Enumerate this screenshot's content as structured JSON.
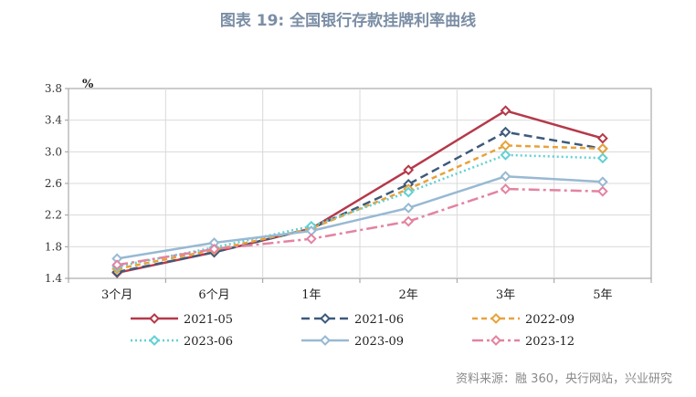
{
  "title": "图表 19: 全国银行存款挂牌利率曲线",
  "source": "资料来源：融 360，央行网站，兴业研究",
  "chart_data": {
    "type": "line",
    "title": "图表 19: 全国银行存款挂牌利率曲线",
    "ylabel": "%",
    "xlabel": "",
    "ylim": [
      1.4,
      3.8
    ],
    "yticks": [
      1.4,
      1.8,
      2.2,
      2.6,
      3.0,
      3.4,
      3.8
    ],
    "ytick_labels": [
      "1.4",
      "1.8",
      "2.2",
      "2.6",
      "3.0",
      "3.4",
      "3.8"
    ],
    "categories": [
      "3个月",
      "6个月",
      "1年",
      "2年",
      "3年",
      "5年"
    ],
    "grid": true,
    "legend_position": "bottom",
    "series": [
      {
        "name": "2021-05",
        "values": [
          1.47,
          1.73,
          2.03,
          2.77,
          3.52,
          3.17
        ],
        "color": "#b5394a",
        "dash": "solid",
        "width": 2.5
      },
      {
        "name": "2021-06",
        "values": [
          1.48,
          1.73,
          2.03,
          2.59,
          3.25,
          3.04
        ],
        "color": "#3e5a7c",
        "dash": "9,5",
        "width": 2.5
      },
      {
        "name": "2022-09",
        "values": [
          1.52,
          1.76,
          2.03,
          2.53,
          3.08,
          3.04
        ],
        "color": "#e8a23a",
        "dash": "6,4",
        "width": 2.5
      },
      {
        "name": "2023-06",
        "values": [
          1.55,
          1.79,
          2.06,
          2.49,
          2.96,
          2.92
        ],
        "color": "#62d0d3",
        "dash": "2,3",
        "width": 2.5
      },
      {
        "name": "2023-09",
        "values": [
          1.65,
          1.85,
          2.0,
          2.29,
          2.69,
          2.62
        ],
        "color": "#98b9d3",
        "dash": "solid",
        "width": 2.5
      },
      {
        "name": "2023-12",
        "values": [
          1.57,
          1.77,
          1.9,
          2.12,
          2.53,
          2.5
        ],
        "color": "#e383a0",
        "dash": "12,4,3,4",
        "width": 2.5
      }
    ]
  }
}
